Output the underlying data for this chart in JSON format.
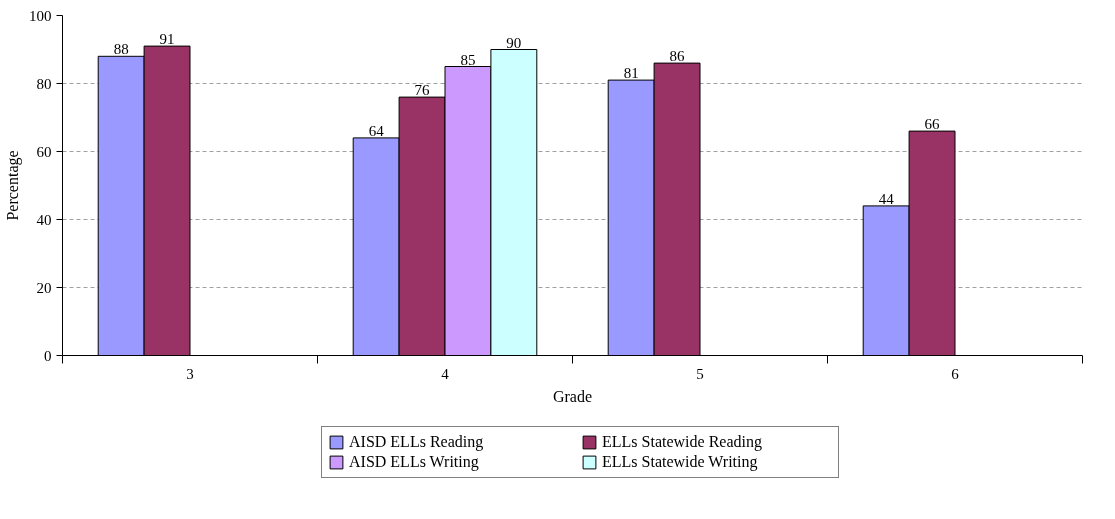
{
  "chart_data": {
    "type": "bar",
    "xlabel": "Grade",
    "ylabel": "Percentage",
    "categories": [
      "3",
      "4",
      "5",
      "6"
    ],
    "series": [
      {
        "name": "AISD ELLs Reading",
        "color": "#9999ff",
        "values": [
          88,
          64,
          81,
          44
        ]
      },
      {
        "name": "ELLs Statewide Reading",
        "color": "#993366",
        "values": [
          91,
          76,
          86,
          66
        ]
      },
      {
        "name": "AISD ELLs Writing",
        "color": "#cc99ff",
        "values": [
          null,
          85,
          null,
          null
        ]
      },
      {
        "name": "ELLs Statewide Writing",
        "color": "#ccffff",
        "values": [
          null,
          90,
          null,
          null
        ]
      }
    ],
    "ylim": [
      0,
      100
    ],
    "yticks": [
      0,
      20,
      40,
      60,
      80,
      100
    ],
    "grid": "y",
    "legend": "bottom",
    "data_labels": true
  }
}
